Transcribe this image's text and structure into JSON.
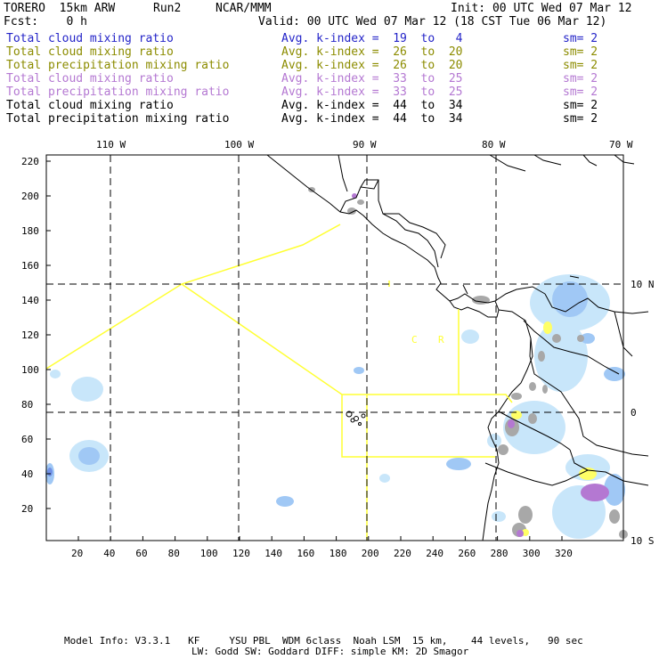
{
  "header": {
    "model": "TORERO  15km ARW",
    "run": "Run2",
    "org": "NCAR/MMM",
    "init": "Init: 00 UTC Wed 07 Mar 12",
    "fcst": "Fcst:    0 h",
    "valid": "Valid: 00 UTC Wed 07 Mar 12 (18 CST Tue 06 Mar 12)"
  },
  "legend": [
    {
      "field": "Total cloud mixing ratio",
      "kindex": "Avg. k-index =  19  to   4",
      "sm": "sm= 2",
      "color": "#2424c8"
    },
    {
      "field": "Total cloud mixing ratio",
      "kindex": "Avg. k-index =  26  to  20",
      "sm": "sm= 2",
      "color": "#8c8c00"
    },
    {
      "field": "Total precipitation mixing ratio",
      "kindex": "Avg. k-index =  26  to  20",
      "sm": "sm= 2",
      "color": "#8c8c00"
    },
    {
      "field": "Total cloud mixing ratio",
      "kindex": "Avg. k-index =  33  to  25",
      "sm": "sm= 2",
      "color": "#b478d2"
    },
    {
      "field": "Total precipitation mixing ratio",
      "kindex": "Avg. k-index =  33  to  25",
      "sm": "sm= 2",
      "color": "#b478d2"
    },
    {
      "field": "Total cloud mixing ratio",
      "kindex": "Avg. k-index =  44  to  34",
      "sm": "sm= 2",
      "color": "#000000"
    },
    {
      "field": "Total precipitation mixing ratio",
      "kindex": "Avg. k-index =  44  to  34",
      "sm": "sm= 2",
      "color": "#000000"
    }
  ],
  "map": {
    "lon_labels": [
      "110 W",
      "100 W",
      "90 W",
      "80 W",
      "70 W"
    ],
    "lat_labels": [
      "10 N",
      "0",
      "10 S"
    ],
    "y_ticks": [
      "220",
      "200",
      "180",
      "160",
      "140",
      "120",
      "100",
      "80",
      "60",
      "40",
      "20"
    ],
    "x_ticks": [
      "20",
      "40",
      "60",
      "80",
      "100",
      "120",
      "140",
      "160",
      "180",
      "200",
      "220",
      "240",
      "260",
      "280",
      "300",
      "320"
    ],
    "region_labels": [
      "C",
      "R"
    ],
    "colors": {
      "coast": "#000000",
      "box": "#ffff33",
      "grid": "#000000",
      "cloud_light": "#c8e6fa",
      "cloud_mid": "#a0c8f5",
      "cloud_dark": "#7090e6",
      "grey": "#a8a8a8",
      "purple": "#b478d2",
      "yellow": "#ffff66"
    }
  },
  "footer": {
    "line1": "Model Info: V3.3.1   KF     YSU PBL  WDM 6class  Noah LSM  15 km,    44 levels,   90 sec",
    "line2": "LW: Godd SW: Goddard DIFF: simple KM: 2D Smagor"
  }
}
